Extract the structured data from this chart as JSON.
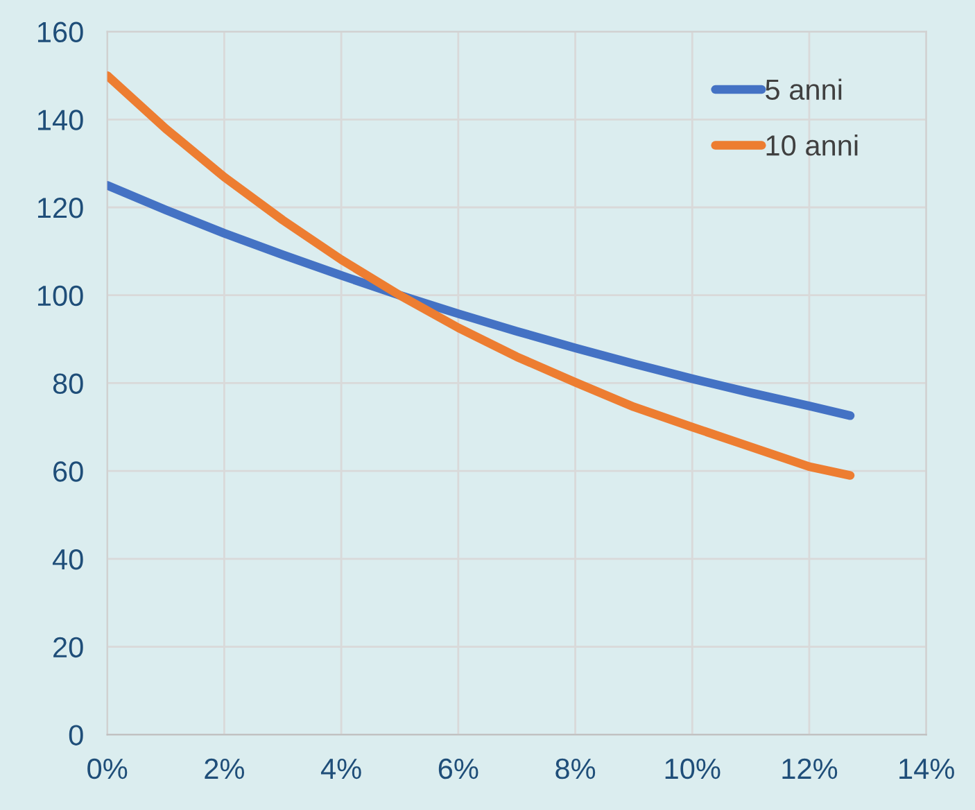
{
  "chart_data": {
    "type": "line",
    "xlim": [
      0,
      14
    ],
    "ylim": [
      0,
      160
    ],
    "xticks": [
      {
        "value": 0,
        "label": "0%"
      },
      {
        "value": 2,
        "label": "2%"
      },
      {
        "value": 4,
        "label": "4%"
      },
      {
        "value": 6,
        "label": "6%"
      },
      {
        "value": 8,
        "label": "8%"
      },
      {
        "value": 10,
        "label": "10%"
      },
      {
        "value": 12,
        "label": "12%"
      },
      {
        "value": 14,
        "label": "14%"
      }
    ],
    "yticks": [
      0,
      20,
      40,
      60,
      80,
      100,
      120,
      140,
      160
    ],
    "x": [
      0,
      1,
      2,
      3,
      4,
      5,
      6,
      7,
      8,
      9,
      10,
      11,
      12,
      12.7
    ],
    "series": [
      {
        "name": "5 anni",
        "color": "#4472c4",
        "values": [
          125,
          119.4,
          114.1,
          109.2,
          104.5,
          100,
          95.8,
          91.8,
          88,
          84.4,
          81,
          77.8,
          74.8,
          72.6
        ]
      },
      {
        "name": "10 anni",
        "color": "#ed7d31",
        "values": [
          150,
          137.9,
          126.9,
          117.1,
          108.1,
          100,
          92.6,
          86,
          80.2,
          74.6,
          70,
          65.5,
          61,
          59
        ]
      }
    ],
    "grid": true,
    "legend": "top right",
    "marker": "none",
    "line_style": "solid"
  }
}
